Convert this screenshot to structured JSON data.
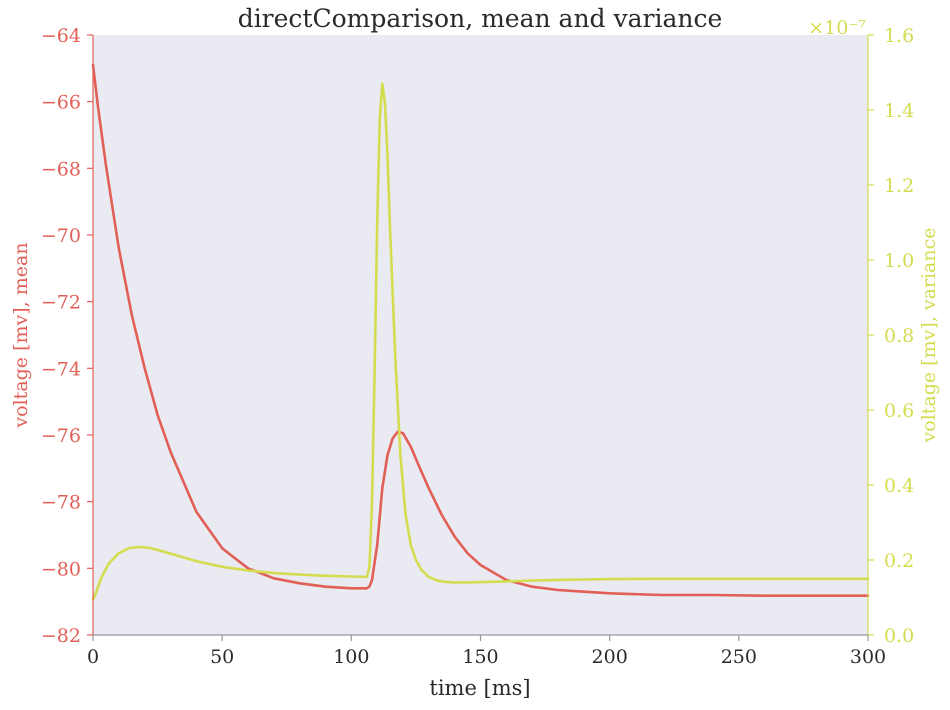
{
  "chart_data": {
    "type": "line",
    "title": "directComparison, mean and variance",
    "xlabel": "time [ms]",
    "xlim": [
      0,
      300
    ],
    "xticks": [
      0,
      50,
      100,
      150,
      200,
      250,
      300
    ],
    "xtick_labels": [
      "0",
      "50",
      "100",
      "150",
      "200",
      "250",
      "300"
    ],
    "grid": false,
    "left_axis": {
      "label": "voltage [mv], mean",
      "color": "#E15F56",
      "ylim": [
        -82,
        -64
      ],
      "ticks": [
        -82,
        -80,
        -78,
        -76,
        -74,
        -72,
        -70,
        -68,
        -66,
        -64
      ],
      "tick_labels": [
        "−82",
        "−80",
        "−78",
        "−76",
        "−74",
        "−72",
        "−70",
        "−68",
        "−66",
        "−64"
      ]
    },
    "right_axis": {
      "label": "voltage [mv], variance",
      "color": "#D4DC50",
      "ylim": [
        0.0,
        1.6
      ],
      "ticks": [
        0.0,
        0.2,
        0.4,
        0.6,
        0.8,
        1.0,
        1.2,
        1.4,
        1.6
      ],
      "tick_labels": [
        "0.0",
        "0.2",
        "0.4",
        "0.6",
        "0.8",
        "1.0",
        "1.2",
        "1.4",
        "1.6"
      ],
      "offset_label": "×10⁻⁷"
    },
    "series": [
      {
        "axis": "left",
        "color": "#E15F56",
        "x": [
          0,
          2,
          5,
          10,
          15,
          20,
          25,
          30,
          40,
          50,
          60,
          70,
          80,
          90,
          100,
          105,
          106,
          107,
          108,
          110,
          112,
          114,
          116,
          118,
          120,
          123,
          126,
          130,
          135,
          140,
          145,
          150,
          160,
          170,
          180,
          190,
          200,
          220,
          240,
          260,
          280,
          300
        ],
        "y": [
          -64.9,
          -66.2,
          -67.9,
          -70.4,
          -72.4,
          -74.0,
          -75.4,
          -76.5,
          -78.3,
          -79.4,
          -80.0,
          -80.3,
          -80.45,
          -80.55,
          -80.6,
          -80.6,
          -80.6,
          -80.55,
          -80.35,
          -79.3,
          -77.6,
          -76.6,
          -76.1,
          -75.9,
          -75.95,
          -76.35,
          -76.9,
          -77.6,
          -78.4,
          -79.05,
          -79.55,
          -79.9,
          -80.35,
          -80.55,
          -80.65,
          -80.7,
          -80.75,
          -80.8,
          -80.8,
          -80.82,
          -80.82,
          -80.82
        ]
      },
      {
        "axis": "right",
        "color": "#D4DC50",
        "x": [
          0,
          1,
          3,
          6,
          10,
          14,
          18,
          22,
          26,
          30,
          40,
          50,
          60,
          70,
          80,
          90,
          100,
          106,
          107,
          108,
          109,
          110,
          111,
          112,
          113,
          114,
          115,
          117,
          119,
          121,
          123,
          125,
          127,
          130,
          133,
          136,
          140,
          145,
          150,
          160,
          170,
          180,
          190,
          200,
          220,
          240,
          260,
          280,
          300
        ],
        "y": [
          0.095,
          0.11,
          0.15,
          0.19,
          0.218,
          0.232,
          0.235,
          0.232,
          0.225,
          0.217,
          0.197,
          0.182,
          0.172,
          0.165,
          0.161,
          0.158,
          0.156,
          0.155,
          0.18,
          0.35,
          0.7,
          1.1,
          1.38,
          1.47,
          1.42,
          1.28,
          1.08,
          0.74,
          0.48,
          0.32,
          0.24,
          0.2,
          0.175,
          0.155,
          0.146,
          0.142,
          0.14,
          0.14,
          0.141,
          0.143,
          0.145,
          0.147,
          0.148,
          0.149,
          0.15,
          0.15,
          0.15,
          0.15,
          0.15
        ]
      }
    ]
  }
}
